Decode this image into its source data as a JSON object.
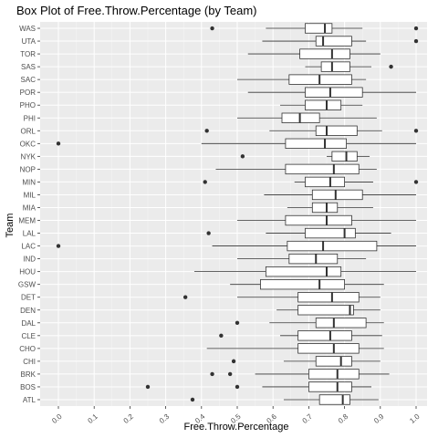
{
  "chart_data": {
    "type": "boxplot",
    "orientation": "horizontal",
    "title": "Box Plot of Free.Throw.Percentage (by Team)",
    "xlabel": "Free.Throw.Percentage",
    "ylabel": "Team",
    "xlim": [
      -0.05,
      1.05
    ],
    "xticks": [
      0.0,
      0.1,
      0.2,
      0.3,
      0.4,
      0.5,
      0.6,
      0.7,
      0.8,
      0.9,
      1.0
    ],
    "xtick_labels": [
      "0.0",
      "0.1",
      "0.2",
      "0.3",
      "0.4",
      "0.5",
      "0.6",
      "0.7",
      "0.8",
      "0.9",
      "1.0"
    ],
    "grid": true,
    "categories": [
      "ATL",
      "BOS",
      "BRK",
      "CHI",
      "CHO",
      "CLE",
      "DAL",
      "DEN",
      "DET",
      "GSW",
      "HOU",
      "IND",
      "LAC",
      "LAL",
      "MEM",
      "MIA",
      "MIL",
      "MIN",
      "NOP",
      "NYK",
      "OKC",
      "ORL",
      "PHI",
      "PHO",
      "POR",
      "SAC",
      "SAS",
      "TOR",
      "UTA",
      "WAS"
    ],
    "series": [
      {
        "team": "ATL",
        "min": 0.63,
        "q1": 0.73,
        "median": 0.795,
        "q3": 0.815,
        "max": 0.895,
        "outliers": [
          0.375
        ]
      },
      {
        "team": "BOS",
        "min": 0.57,
        "q1": 0.7,
        "median": 0.78,
        "q3": 0.82,
        "max": 0.875,
        "outliers": [
          0.25,
          0.5
        ]
      },
      {
        "team": "BRK",
        "min": 0.55,
        "q1": 0.7,
        "median": 0.78,
        "q3": 0.84,
        "max": 0.925,
        "outliers": [
          0.43,
          0.48
        ]
      },
      {
        "team": "CHI",
        "min": 0.63,
        "q1": 0.72,
        "median": 0.79,
        "q3": 0.82,
        "max": 0.9,
        "outliers": [
          0.49
        ]
      },
      {
        "team": "CHO",
        "min": 0.415,
        "q1": 0.67,
        "median": 0.77,
        "q3": 0.84,
        "max": 0.91,
        "outliers": []
      },
      {
        "team": "CLE",
        "min": 0.62,
        "q1": 0.67,
        "median": 0.76,
        "q3": 0.82,
        "max": 0.905,
        "outliers": [
          0.455
        ]
      },
      {
        "team": "DAL",
        "min": 0.59,
        "q1": 0.72,
        "median": 0.77,
        "q3": 0.86,
        "max": 0.91,
        "outliers": [
          0.5
        ]
      },
      {
        "team": "DEN",
        "min": 0.61,
        "q1": 0.67,
        "median": 0.815,
        "q3": 0.825,
        "max": 0.9,
        "outliers": []
      },
      {
        "team": "DET",
        "min": 0.5,
        "q1": 0.67,
        "median": 0.765,
        "q3": 0.84,
        "max": 0.9,
        "outliers": [
          0.355
        ]
      },
      {
        "team": "GSW",
        "min": 0.48,
        "q1": 0.565,
        "median": 0.73,
        "q3": 0.8,
        "max": 0.91,
        "outliers": []
      },
      {
        "team": "HOU",
        "min": 0.38,
        "q1": 0.58,
        "median": 0.75,
        "q3": 0.79,
        "max": 1.0,
        "outliers": []
      },
      {
        "team": "IND",
        "min": 0.5,
        "q1": 0.645,
        "median": 0.72,
        "q3": 0.78,
        "max": 0.86,
        "outliers": []
      },
      {
        "team": "LAC",
        "min": 0.43,
        "q1": 0.64,
        "median": 0.74,
        "q3": 0.89,
        "max": 1.0,
        "outliers": [
          0.0
        ]
      },
      {
        "team": "LAL",
        "min": 0.58,
        "q1": 0.69,
        "median": 0.8,
        "q3": 0.83,
        "max": 0.93,
        "outliers": [
          0.42
        ]
      },
      {
        "team": "MEM",
        "min": 0.5,
        "q1": 0.635,
        "median": 0.75,
        "q3": 0.82,
        "max": 1.0,
        "outliers": []
      },
      {
        "team": "MIA",
        "min": 0.64,
        "q1": 0.71,
        "median": 0.75,
        "q3": 0.78,
        "max": 0.88,
        "outliers": []
      },
      {
        "team": "MIL",
        "min": 0.575,
        "q1": 0.71,
        "median": 0.775,
        "q3": 0.85,
        "max": 1.0,
        "outliers": []
      },
      {
        "team": "MIN",
        "min": 0.66,
        "q1": 0.69,
        "median": 0.76,
        "q3": 0.8,
        "max": 0.88,
        "outliers": [
          0.41,
          1.0
        ]
      },
      {
        "team": "NOP",
        "min": 0.44,
        "q1": 0.635,
        "median": 0.77,
        "q3": 0.84,
        "max": 0.89,
        "outliers": []
      },
      {
        "team": "NYK",
        "min": 0.75,
        "q1": 0.765,
        "median": 0.805,
        "q3": 0.835,
        "max": 0.87,
        "outliers": [
          0.515
        ]
      },
      {
        "team": "OKC",
        "min": 0.4,
        "q1": 0.635,
        "median": 0.745,
        "q3": 0.805,
        "max": 1.0,
        "outliers": [
          0.0
        ]
      },
      {
        "team": "ORL",
        "min": 0.59,
        "q1": 0.72,
        "median": 0.75,
        "q3": 0.835,
        "max": 0.905,
        "outliers": [
          0.415,
          1.0
        ]
      },
      {
        "team": "PHI",
        "min": 0.5,
        "q1": 0.625,
        "median": 0.675,
        "q3": 0.73,
        "max": 0.89,
        "outliers": []
      },
      {
        "team": "PHO",
        "min": 0.62,
        "q1": 0.69,
        "median": 0.75,
        "q3": 0.79,
        "max": 0.85,
        "outliers": []
      },
      {
        "team": "POR",
        "min": 0.53,
        "q1": 0.69,
        "median": 0.76,
        "q3": 0.85,
        "max": 1.0,
        "outliers": []
      },
      {
        "team": "SAC",
        "min": 0.5,
        "q1": 0.645,
        "median": 0.73,
        "q3": 0.82,
        "max": 0.86,
        "outliers": []
      },
      {
        "team": "SAS",
        "min": 0.69,
        "q1": 0.735,
        "median": 0.765,
        "q3": 0.815,
        "max": 0.875,
        "outliers": [
          0.93
        ]
      },
      {
        "team": "TOR",
        "min": 0.53,
        "q1": 0.675,
        "median": 0.765,
        "q3": 0.815,
        "max": 0.9,
        "outliers": []
      },
      {
        "team": "UTA",
        "min": 0.57,
        "q1": 0.72,
        "median": 0.74,
        "q3": 0.82,
        "max": 0.86,
        "outliers": [
          1.0
        ]
      },
      {
        "team": "WAS",
        "min": 0.58,
        "q1": 0.69,
        "median": 0.745,
        "q3": 0.765,
        "max": 0.85,
        "outliers": [
          0.43,
          1.0
        ]
      }
    ]
  }
}
